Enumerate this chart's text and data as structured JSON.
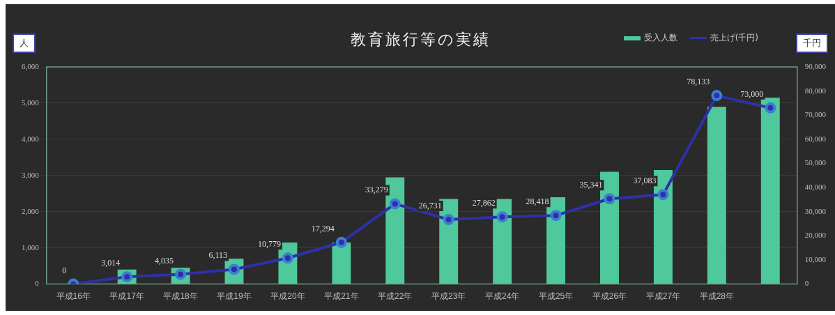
{
  "chart_data": {
    "type": "bar",
    "title": "教育旅行等の実績",
    "ylabel": "人",
    "y2label": "千円",
    "categories": [
      "平成16年",
      "平成17年",
      "平成18年",
      "平成19年",
      "平成20年",
      "平成21年",
      "平成22年",
      "平成23年",
      "平成24年",
      "平成25年",
      "平成26年",
      "平成27年",
      "平成28年",
      null
    ],
    "series": [
      {
        "name": "受入人数",
        "color": "#4fc89c",
        "values": [
          0,
          400,
          450,
          700,
          1150,
          1150,
          2950,
          2350,
          2350,
          2400,
          3100,
          3150,
          4900,
          5150
        ]
      },
      {
        "name": "売上げ(千円)",
        "type": "line",
        "axis": "y2",
        "color": "#2f30a8",
        "marker": "circle",
        "values": [
          0,
          3014,
          4035,
          6113,
          10779,
          17294,
          33279,
          26731,
          27862,
          28418,
          35341,
          37083,
          78133,
          73000
        ],
        "value_labels": [
          "0",
          "3,014",
          "4,035",
          "6,113",
          "10,779",
          "17,294",
          "33,279",
          "26,731",
          "27,862",
          "28,418",
          "35,341",
          "37,083",
          "78,133",
          "73,000"
        ]
      }
    ],
    "ylim": [
      0,
      6000
    ],
    "yticks": [
      0,
      {
        "value": 1000,
        "label": "1,000"
      },
      {
        "value": 2000,
        "label": "2,000"
      },
      {
        "value": 3000,
        "label": "3,000"
      },
      {
        "value": 4000,
        "label": "4,000"
      },
      {
        "value": 5000,
        "label": "5,000"
      },
      {
        "value": 6000,
        "label": "6,000"
      }
    ],
    "y2lim": [
      0,
      90000
    ],
    "y2ticks": [
      0,
      {
        "value": 10000,
        "label": "10,000"
      },
      {
        "value": 20000,
        "label": "20,000"
      },
      {
        "value": 30000,
        "label": "30,000"
      },
      {
        "value": 40000,
        "label": "40,000"
      },
      {
        "value": 50000,
        "label": "50,000"
      },
      {
        "value": 60000,
        "label": "60,000"
      },
      {
        "value": 70000,
        "label": "70,000"
      },
      {
        "value": 80000,
        "label": "80,000"
      },
      {
        "value": 90000,
        "label": "90,000"
      }
    ],
    "grid": "y",
    "legend": "top right"
  }
}
